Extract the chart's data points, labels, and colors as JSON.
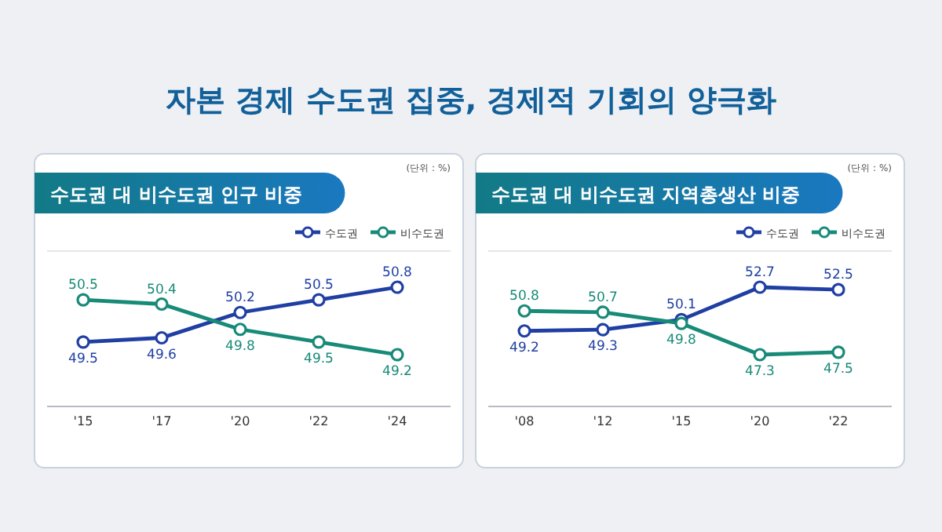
{
  "chart_data": [
    {
      "type": "line",
      "title": "수도권 대 비수도권 인구 비중",
      "categories": [
        "'15",
        "'17",
        "'20",
        "'22",
        "'24"
      ],
      "series": [
        {
          "name": "수도권",
          "color": "#1f3fa3",
          "values": [
            49.5,
            49.6,
            50.2,
            50.5,
            50.8
          ]
        },
        {
          "name": "비수도권",
          "color": "#178a78",
          "values": [
            50.5,
            50.4,
            49.8,
            49.5,
            49.2
          ]
        }
      ],
      "marker": "circle",
      "legend": "top right",
      "data_labels": true,
      "annotations": [
        "자본 경제 수도권 집중, 경제적 기회의 양극화",
        "(단위 : %)"
      ]
    },
    {
      "type": "line",
      "title": "수도권 대 비수도권 지역총생산 비중",
      "categories": [
        "'08",
        "'12",
        "'15",
        "'20",
        "'22"
      ],
      "series": [
        {
          "name": "수도권",
          "color": "#1f3fa3",
          "values": [
            49.2,
            49.3,
            50.1,
            52.7,
            52.5
          ]
        },
        {
          "name": "비수도권",
          "color": "#178a78",
          "values": [
            50.8,
            50.7,
            49.8,
            47.3,
            47.5
          ]
        }
      ],
      "marker": "circle",
      "legend": "top right",
      "data_labels": true,
      "annotations": [
        "(단위 : %)"
      ]
    }
  ]
}
